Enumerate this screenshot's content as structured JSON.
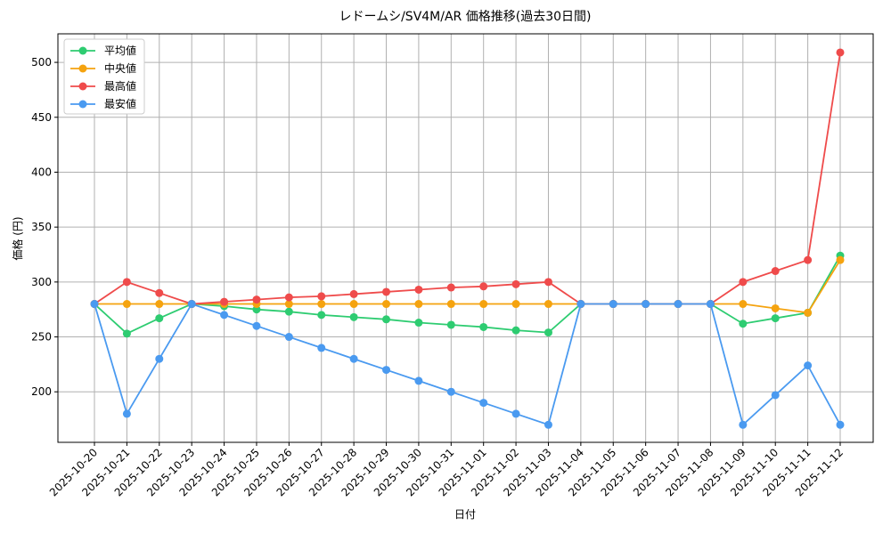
{
  "chart_data": {
    "type": "line",
    "title": "レドームシ/SV4M/AR 価格推移(過去30日間)",
    "x_label": "日付",
    "y_label": "価格 (円)",
    "categories": [
      "2025-10-20",
      "2025-10-21",
      "2025-10-22",
      "2025-10-23",
      "2025-10-24",
      "2025-10-25",
      "2025-10-26",
      "2025-10-27",
      "2025-10-28",
      "2025-10-29",
      "2025-10-30",
      "2025-10-31",
      "2025-11-01",
      "2025-11-02",
      "2025-11-03",
      "2025-11-04",
      "2025-11-05",
      "2025-11-06",
      "2025-11-07",
      "2025-11-08",
      "2025-11-09",
      "2025-11-10",
      "2025-11-11",
      "2025-11-12"
    ],
    "series": [
      {
        "name": "平均値",
        "color": "#2ecc71",
        "values": [
          280,
          253,
          267,
          280,
          278,
          275,
          273,
          270,
          268,
          266,
          263,
          261,
          259,
          256,
          254,
          280,
          280,
          280,
          280,
          280,
          262,
          267,
          272,
          324
        ]
      },
      {
        "name": "中央値",
        "color": "#f5a30f",
        "values": [
          280,
          280,
          280,
          280,
          280,
          280,
          280,
          280,
          280,
          280,
          280,
          280,
          280,
          280,
          280,
          280,
          280,
          280,
          280,
          280,
          280,
          276,
          272,
          320
        ]
      },
      {
        "name": "最高値",
        "color": "#ef4b4b",
        "values": [
          280,
          300,
          290,
          280,
          282,
          284,
          286,
          287,
          289,
          291,
          293,
          295,
          296,
          298,
          300,
          280,
          280,
          280,
          280,
          280,
          300,
          310,
          320,
          509
        ]
      },
      {
        "name": "最安値",
        "color": "#4a9af0",
        "values": [
          280,
          180,
          230,
          280,
          270,
          260,
          250,
          240,
          230,
          220,
          210,
          200,
          190,
          180,
          170,
          280,
          280,
          280,
          280,
          280,
          170,
          197,
          224,
          170
        ]
      }
    ],
    "ylim": [
      154,
      526
    ],
    "yticks": [
      200,
      250,
      300,
      350,
      400,
      450,
      500
    ],
    "grid": true,
    "legend": "upper-left"
  }
}
